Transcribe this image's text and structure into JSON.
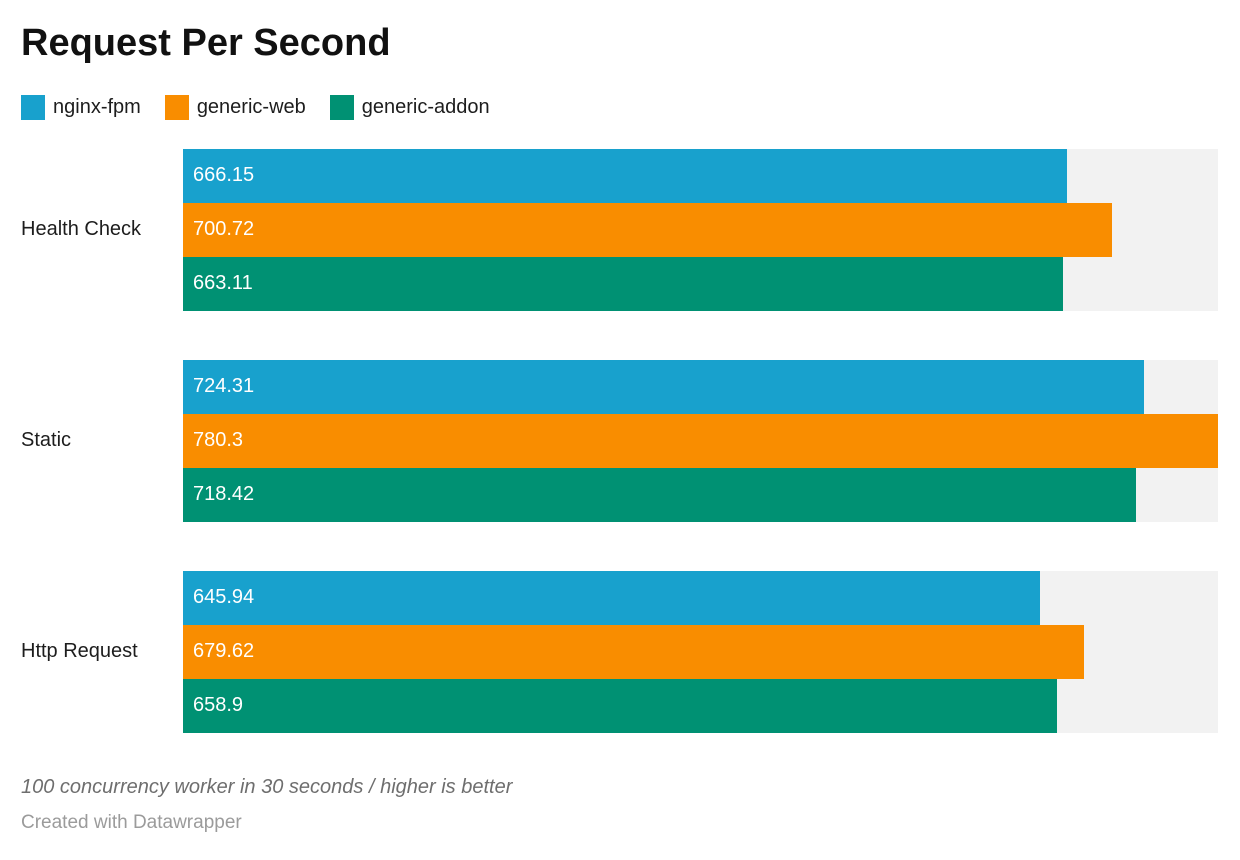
{
  "title": "Request Per Second",
  "footer": {
    "note": "100 concurrency worker in 30 seconds / higher is better",
    "attribution": "Created with Datawrapper"
  },
  "colors": {
    "track": "#f2f2f2",
    "category_text": "#1d1d1d",
    "bar_value_text": "#ffffff",
    "title_text": "#111111",
    "note_text": "#6e6e6e",
    "attribution_text": "#9b9b9b"
  },
  "chart_data": {
    "type": "bar",
    "orientation": "horizontal",
    "title": "Request Per Second",
    "categories": [
      "Health Check",
      "Static",
      "Http Request"
    ],
    "series": [
      {
        "name": "nginx-fpm",
        "color": "#18a1cd",
        "values": [
          666.15,
          724.31,
          645.94
        ],
        "value_labels": [
          "666.15",
          "724.31",
          "645.94"
        ]
      },
      {
        "name": "generic-web",
        "color": "#f98d00",
        "values": [
          700.72,
          780.3,
          679.62
        ],
        "value_labels": [
          "700.72",
          "780.3",
          "679.62"
        ]
      },
      {
        "name": "generic-addon",
        "color": "#009173",
        "values": [
          663.11,
          718.42,
          658.9
        ],
        "value_labels": [
          "663.11",
          "718.42",
          "658.9"
        ]
      }
    ],
    "xlim": [
      0,
      780.3
    ],
    "grid": false,
    "axis_ticks_visible": false,
    "legend_position": "top",
    "value_labels_position": "inside-start",
    "notes": "100 concurrency worker in 30 seconds / higher is better",
    "attribution": "Created with Datawrapper"
  }
}
